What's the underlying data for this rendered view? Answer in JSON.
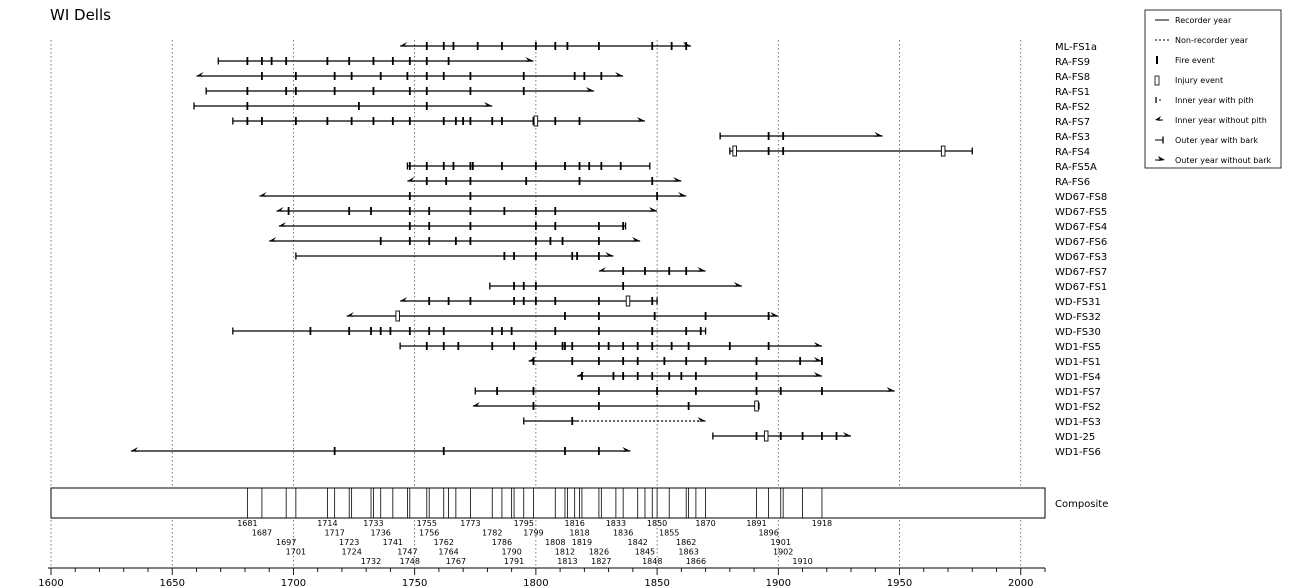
{
  "chart_data": {
    "type": "fire-history",
    "title": "WI Dells",
    "xlim": [
      1600,
      2010
    ],
    "x_ticks": [
      1600,
      1650,
      1700,
      1750,
      1800,
      1850,
      1900,
      1950,
      2000
    ],
    "grid": true,
    "legend_position": "top-right",
    "legend": [
      {
        "symbol": "recorder",
        "label": "Recorder year"
      },
      {
        "symbol": "nonrecorder",
        "label": "Non-recorder year"
      },
      {
        "symbol": "fire",
        "label": "Fire event"
      },
      {
        "symbol": "injury",
        "label": "Injury event"
      },
      {
        "symbol": "pith",
        "label": "Inner year with pith"
      },
      {
        "symbol": "nopith",
        "label": "Inner year without pith"
      },
      {
        "symbol": "bark",
        "label": "Outer year with bark"
      },
      {
        "symbol": "nobark",
        "label": "Outer year without bark"
      }
    ],
    "series": [
      {
        "name": "ML-FS1a",
        "start": 1744,
        "end": 1864,
        "start_type": "nopith",
        "end_type": "nobark",
        "fires": [
          1755,
          1762,
          1766,
          1776,
          1786,
          1800,
          1808,
          1813,
          1826,
          1848,
          1856,
          1862
        ],
        "injuries": [],
        "nonrecorder": []
      },
      {
        "name": "RA-FS9",
        "start": 1669,
        "end": 1799,
        "start_type": "pith",
        "end_type": "nobark",
        "fires": [
          1681,
          1687,
          1691,
          1697,
          1714,
          1723,
          1733,
          1741,
          1748,
          1755,
          1764
        ],
        "injuries": [],
        "nonrecorder": []
      },
      {
        "name": "RA-FS8",
        "start": 1660,
        "end": 1836,
        "start_type": "nopith",
        "end_type": "nobark",
        "fires": [
          1687,
          1701,
          1717,
          1724,
          1736,
          1747,
          1755,
          1762,
          1773,
          1795,
          1816,
          1820,
          1827
        ],
        "injuries": [],
        "nonrecorder": []
      },
      {
        "name": "RA-FS1",
        "start": 1664,
        "end": 1824,
        "start_type": "pith",
        "end_type": "nobark",
        "fires": [
          1681,
          1697,
          1701,
          1717,
          1733,
          1748,
          1755,
          1773,
          1795
        ],
        "injuries": [],
        "nonrecorder": []
      },
      {
        "name": "RA-FS2",
        "start": 1659,
        "end": 1782,
        "start_type": "pith",
        "end_type": "nobark",
        "fires": [
          1681,
          1727,
          1755
        ],
        "injuries": [],
        "nonrecorder": []
      },
      {
        "name": "RA-FS7",
        "start": 1675,
        "end": 1845,
        "start_type": "pith",
        "end_type": "nobark",
        "fires": [
          1681,
          1687,
          1701,
          1714,
          1724,
          1733,
          1741,
          1748,
          1762,
          1767,
          1770,
          1773,
          1782,
          1786,
          1799,
          1808,
          1818
        ],
        "injuries": [
          1800
        ],
        "nonrecorder": []
      },
      {
        "name": "RA-FS3",
        "start": 1876,
        "end": 1943,
        "start_type": "pith",
        "end_type": "nobark",
        "fires": [
          1896,
          1902
        ],
        "injuries": [],
        "nonrecorder": []
      },
      {
        "name": "RA-FS4",
        "start": 1880,
        "end": 1980,
        "start_type": "pith",
        "end_type": "bark",
        "fires": [
          1896,
          1902
        ],
        "injuries": [
          1882,
          1968
        ],
        "nonrecorder": []
      },
      {
        "name": "RA-FS5A",
        "start": 1747,
        "end": 1847,
        "start_type": "pith",
        "end_type": "bark",
        "fires": [
          1748,
          1755,
          1762,
          1766,
          1773,
          1774,
          1786,
          1800,
          1812,
          1818,
          1822,
          1827,
          1835
        ],
        "injuries": [],
        "nonrecorder": []
      },
      {
        "name": "RA-FS6",
        "start": 1747,
        "end": 1860,
        "start_type": "nopith",
        "end_type": "nobark",
        "fires": [
          1755,
          1763,
          1773,
          1796,
          1818,
          1848
        ],
        "injuries": [],
        "nonrecorder": []
      },
      {
        "name": "WD67-FS8",
        "start": 1686,
        "end": 1862,
        "start_type": "nopith",
        "end_type": "nobark",
        "fires": [
          1748,
          1773,
          1850
        ],
        "injuries": [],
        "nonrecorder": []
      },
      {
        "name": "WD67-FS5",
        "start": 1693,
        "end": 1850,
        "start_type": "nopith",
        "end_type": "nobark",
        "fires": [
          1698,
          1723,
          1732,
          1748,
          1756,
          1773,
          1787,
          1800,
          1808
        ],
        "injuries": [],
        "nonrecorder": []
      },
      {
        "name": "WD67-FS4",
        "start": 1694,
        "end": 1837,
        "start_type": "nopith",
        "end_type": "bark",
        "fires": [
          1748,
          1756,
          1773,
          1800,
          1808,
          1826,
          1836
        ],
        "injuries": [],
        "nonrecorder": []
      },
      {
        "name": "WD67-FS6",
        "start": 1690,
        "end": 1843,
        "start_type": "nopith",
        "end_type": "nobark",
        "fires": [
          1736,
          1748,
          1756,
          1767,
          1773,
          1800,
          1806,
          1811,
          1826
        ],
        "injuries": [],
        "nonrecorder": []
      },
      {
        "name": "WD67-FS3",
        "start": 1701,
        "end": 1832,
        "start_type": "pith",
        "end_type": "nobark",
        "fires": [
          1787,
          1791,
          1800,
          1815,
          1817,
          1826
        ],
        "injuries": [],
        "nonrecorder": []
      },
      {
        "name": "WD67-FS7",
        "start": 1826,
        "end": 1870,
        "start_type": "nopith",
        "end_type": "nobark",
        "fires": [
          1836,
          1845,
          1855,
          1862
        ],
        "injuries": [],
        "nonrecorder": []
      },
      {
        "name": "WD67-FS1",
        "start": 1781,
        "end": 1885,
        "start_type": "pith",
        "end_type": "nobark",
        "fires": [
          1791,
          1795,
          1800,
          1836
        ],
        "injuries": [],
        "nonrecorder": []
      },
      {
        "name": "WD-FS31",
        "start": 1744,
        "end": 1850,
        "start_type": "nopith",
        "end_type": "bark",
        "fires": [
          1756,
          1764,
          1773,
          1791,
          1795,
          1800,
          1808,
          1826,
          1848
        ],
        "injuries": [
          1838
        ],
        "nonrecorder": []
      },
      {
        "name": "WD-FS32",
        "start": 1722,
        "end": 1900,
        "start_type": "nopith",
        "end_type": "nobark",
        "fires": [
          1812,
          1826,
          1849,
          1870,
          1896
        ],
        "injuries": [
          1743
        ],
        "nonrecorder": []
      },
      {
        "name": "WD-FS30",
        "start": 1675,
        "end": 1870,
        "start_type": "pith",
        "end_type": "bark",
        "fires": [
          1707,
          1723,
          1732,
          1736,
          1740,
          1748,
          1756,
          1762,
          1782,
          1786,
          1790,
          1808,
          1826,
          1848,
          1862,
          1868
        ],
        "injuries": [],
        "nonrecorder": []
      },
      {
        "name": "WD1-FS5",
        "start": 1744,
        "end": 1918,
        "start_type": "pith",
        "end_type": "nobark",
        "fires": [
          1755,
          1762,
          1768,
          1782,
          1791,
          1800,
          1811,
          1812,
          1815,
          1826,
          1830,
          1836,
          1842,
          1848,
          1856,
          1863,
          1880,
          1896
        ],
        "injuries": [],
        "nonrecorder": []
      },
      {
        "name": "WD1-FS1",
        "start": 1797,
        "end": 1918,
        "start_type": "nopith",
        "end_type": "nobark",
        "fires": [
          1799,
          1815,
          1826,
          1836,
          1842,
          1853,
          1862,
          1870,
          1891,
          1909,
          1918
        ],
        "injuries": [],
        "nonrecorder": []
      },
      {
        "name": "WD1-FS4",
        "start": 1817,
        "end": 1918,
        "start_type": "nopith",
        "end_type": "nobark",
        "fires": [
          1819,
          1832,
          1836,
          1842,
          1848,
          1855,
          1860,
          1866,
          1891
        ],
        "injuries": [],
        "nonrecorder": []
      },
      {
        "name": "WD1-FS7",
        "start": 1775,
        "end": 1948,
        "start_type": "pith",
        "end_type": "nobark",
        "fires": [
          1784,
          1799,
          1826,
          1850,
          1866,
          1891,
          1901,
          1918
        ],
        "injuries": [],
        "nonrecorder": []
      },
      {
        "name": "WD1-FS2",
        "start": 1774,
        "end": 1892,
        "start_type": "nopith",
        "end_type": "bark",
        "fires": [
          1799,
          1826,
          1863
        ],
        "injuries": [
          1891
        ],
        "nonrecorder": []
      },
      {
        "name": "WD1-FS3",
        "start": 1795,
        "end": 1870,
        "start_type": "pith",
        "end_type": "nobark",
        "fires": [
          1815
        ],
        "injuries": [],
        "nonrecorder": [
          [
            1817,
            1868
          ]
        ]
      },
      {
        "name": "WD1-25",
        "start": 1873,
        "end": 1930,
        "start_type": "pith",
        "end_type": "nobark",
        "fires": [
          1891,
          1901,
          1910,
          1918,
          1924
        ],
        "injuries": [
          1895
        ],
        "nonrecorder": []
      },
      {
        "name": "WD1-FS6",
        "start": 1633,
        "end": 1839,
        "start_type": "nopith",
        "end_type": "nobark",
        "fires": [
          1717,
          1762,
          1812,
          1826
        ],
        "injuries": [],
        "nonrecorder": []
      }
    ],
    "composite": {
      "name": "Composite",
      "years": [
        1681,
        1687,
        1697,
        1701,
        1714,
        1717,
        1723,
        1724,
        1732,
        1733,
        1736,
        1741,
        1747,
        1748,
        1755,
        1756,
        1762,
        1764,
        1767,
        1773,
        1782,
        1786,
        1790,
        1791,
        1795,
        1799,
        1808,
        1812,
        1813,
        1816,
        1818,
        1819,
        1826,
        1827,
        1833,
        1836,
        1842,
        1845,
        1848,
        1850,
        1855,
        1862,
        1863,
        1866,
        1870,
        1891,
        1896,
        1901,
        1902,
        1910,
        1918
      ],
      "label_rows": [
        [
          "1681",
          "1714",
          "1733",
          "1755",
          "1773",
          "1795",
          "1816",
          "1833",
          "1850",
          "1870",
          "1891",
          "1918"
        ],
        [
          "1687",
          "1717",
          "1736",
          "1756",
          "1782",
          "1799",
          "1818",
          "1836",
          "1855",
          "1896"
        ],
        [
          "1697",
          "1723",
          "1741",
          "1762",
          "1786",
          "1808",
          "1819",
          "1842",
          "1862",
          "1901"
        ],
        [
          "1701",
          "1724",
          "1747",
          "1764",
          "1790",
          "1812",
          "1826",
          "1845",
          "1863",
          "1902"
        ],
        [
          "1732",
          "1748",
          "1767",
          "1791",
          "1813",
          "1827",
          "1848",
          "1866",
          "1910"
        ]
      ]
    }
  }
}
